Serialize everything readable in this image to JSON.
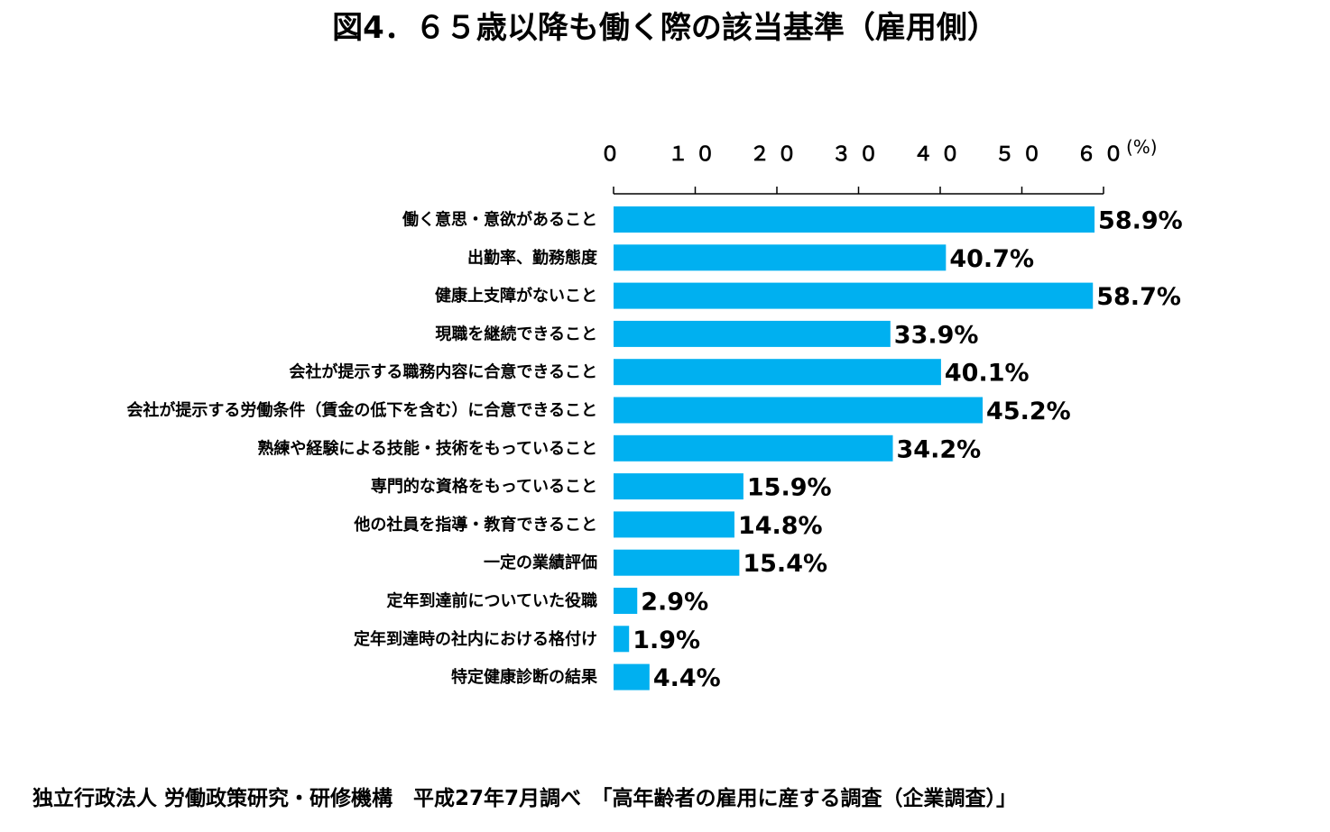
{
  "chart_data": {
    "type": "bar",
    "orientation": "horizontal",
    "title": "図4．６５歳以降も働く際の該当基準（雇用側）",
    "unit_label": "(%)",
    "xlim": [
      0,
      60
    ],
    "ticks": [
      0,
      10,
      20,
      30,
      40,
      50,
      60
    ],
    "tick_labels": [
      "０",
      "１０",
      "２０",
      "３０",
      "４０",
      "５０",
      "６０"
    ],
    "categories": [
      "働く意思・意欲があること",
      "出勤率、勤務態度",
      "健康上支障がないこと",
      "現職を継続できること",
      "会社が提示する職務内容に合意できること",
      "会社が提示する労働条件（賃金の低下を含む）に合意できること",
      "熟練や経験による技能・技術をもっていること",
      "専門的な資格をもっていること",
      "他の社員を指導・教育できること",
      "一定の業績評価",
      "定年到達前についていた役職",
      "定年到達時の社内における格付け",
      "特定健康診断の結果"
    ],
    "values": [
      58.9,
      40.7,
      58.7,
      33.9,
      40.1,
      45.2,
      34.2,
      15.9,
      14.8,
      15.4,
      2.9,
      1.9,
      4.4
    ],
    "value_labels": [
      "58.9%",
      "40.7%",
      "58.7%",
      "33.9%",
      "40.1%",
      "45.2%",
      "34.2%",
      "15.9%",
      "14.8%",
      "15.4%",
      "2.9%",
      "1.9%",
      "4.4%"
    ],
    "bar_color": "#00B0F0",
    "axis_position": "top",
    "grid": false,
    "legend": "none",
    "source": "独立行政法人 労働政策研究・研修機構　平成27年7月調べ　「高年齢者の雇用に産する調査（企業調査）」"
  }
}
